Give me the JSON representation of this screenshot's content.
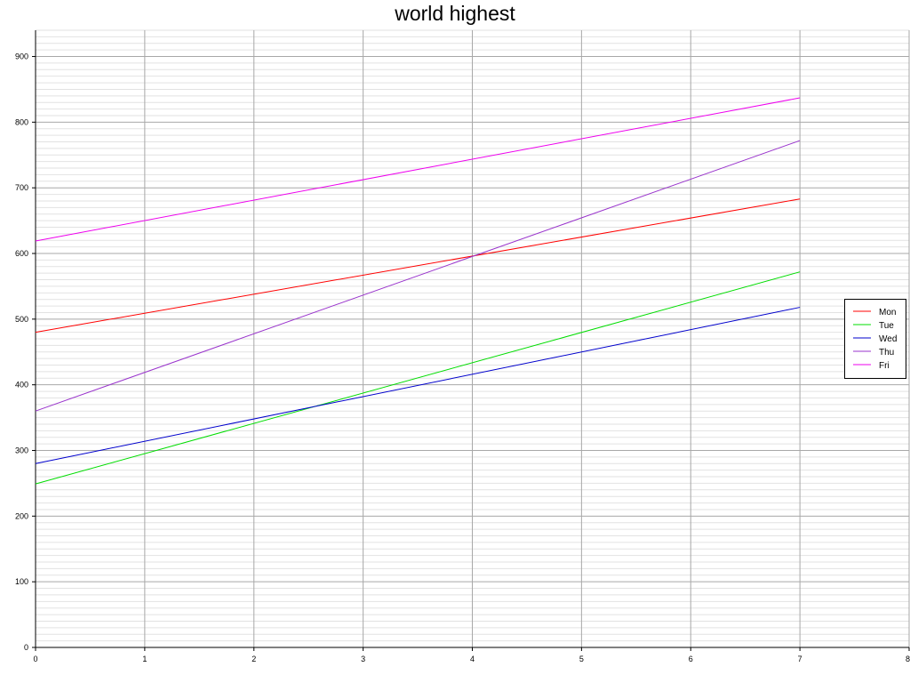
{
  "chart_data": {
    "type": "line",
    "title": "world highest",
    "xlabel": "",
    "ylabel": "",
    "xlim": [
      0,
      8
    ],
    "ylim": [
      0,
      940
    ],
    "x_ticks": [
      0,
      1,
      2,
      3,
      4,
      5,
      6,
      7,
      8
    ],
    "y_ticks": [
      0,
      100,
      200,
      300,
      400,
      500,
      600,
      700,
      800,
      900
    ],
    "y_minor_step": 10,
    "grid": true,
    "legend_position": "right",
    "x": [
      0,
      7
    ],
    "series": [
      {
        "name": "Mon",
        "color": "#ff0000",
        "values": [
          480,
          683
        ]
      },
      {
        "name": "Tue",
        "color": "#00dd00",
        "values": [
          249,
          572
        ]
      },
      {
        "name": "Wed",
        "color": "#0000cc",
        "values": [
          280,
          518
        ]
      },
      {
        "name": "Thu",
        "color": "#9933cc",
        "values": [
          360,
          772
        ]
      },
      {
        "name": "Fri",
        "color": "#ee00ee",
        "values": [
          619,
          837
        ]
      }
    ]
  }
}
